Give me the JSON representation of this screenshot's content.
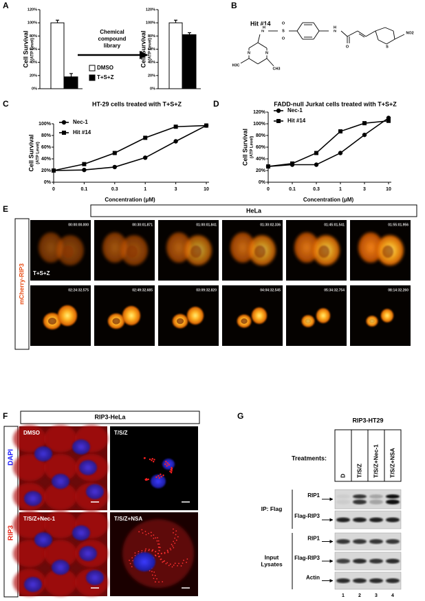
{
  "panels": [
    "A",
    "B",
    "C",
    "D",
    "E",
    "F",
    "G"
  ],
  "chart_data": [
    {
      "type": "bar",
      "ylabel": "Cell Survival",
      "ylabel_sub": "(ATP Level)",
      "ylim": [
        0,
        120
      ],
      "yticks": [
        {
          "value": 0,
          "label": "0%"
        },
        {
          "value": 20,
          "label": "20%"
        },
        {
          "value": 40,
          "label": "40%"
        },
        {
          "value": 60,
          "label": "60%"
        },
        {
          "value": 80,
          "label": "80%"
        },
        {
          "value": 100,
          "label": "100%"
        },
        {
          "value": 120,
          "label": "120%"
        }
      ],
      "series": [
        {
          "name": "DMSO",
          "color": "#ffffff",
          "values": [
            100
          ],
          "errors": [
            4
          ]
        },
        {
          "name": "T+S+Z",
          "color": "#000000",
          "values": [
            18
          ],
          "errors": [
            5
          ]
        }
      ],
      "annotation": [
        "Chemical",
        "compound",
        "library"
      ]
    },
    {
      "type": "bar",
      "ylabel": "Cell Survival",
      "ylabel_sub": "(ATP Level)",
      "ylim": [
        0,
        120
      ],
      "yticks": [
        {
          "value": 0,
          "label": "0%"
        },
        {
          "value": 20,
          "label": "20%"
        },
        {
          "value": 40,
          "label": "40%"
        },
        {
          "value": 60,
          "label": "60%"
        },
        {
          "value": 80,
          "label": "80%"
        },
        {
          "value": 100,
          "label": "100%"
        },
        {
          "value": 120,
          "label": "120%"
        }
      ],
      "series": [
        {
          "color": "#ffffff",
          "values": [
            100
          ],
          "errors": [
            4
          ]
        },
        {
          "color": "#000000",
          "values": [
            82
          ],
          "errors": [
            3
          ]
        }
      ]
    },
    {
      "type": "line",
      "title": "HT-29 cells treated with T+S+Z",
      "ylabel": "Cell Survival",
      "ylabel_sub": "(ATP Level)",
      "xlabel": "Concentration (μM)",
      "categories": [
        "0",
        "0.1",
        "0.3",
        "1",
        "3",
        "10"
      ],
      "ylim": [
        0,
        100
      ],
      "yticks": [
        {
          "value": 0,
          "label": "0%"
        },
        {
          "value": 20,
          "label": "20%"
        },
        {
          "value": 40,
          "label": "40%"
        },
        {
          "value": 60,
          "label": "60%"
        },
        {
          "value": 80,
          "label": "80%"
        },
        {
          "value": 100,
          "label": "100%"
        }
      ],
      "series": [
        {
          "name": "Nec-1",
          "color": "#000000",
          "marker": "circle",
          "values": [
            20,
            21,
            26,
            42,
            70,
            97
          ]
        },
        {
          "name": "Hit #14",
          "color": "#000000",
          "marker": "square",
          "values": [
            20,
            31,
            50,
            76,
            95,
            97
          ]
        }
      ]
    },
    {
      "type": "line",
      "title": "FADD-null Jurkat cells treated with T+S+Z",
      "ylabel": "Cell Survival",
      "ylabel_sub": "(ATP Level)",
      "xlabel": "Concentration (μM)",
      "categories": [
        "0",
        "0.1",
        "0.3",
        "1",
        "3",
        "10"
      ],
      "ylim": [
        0,
        120
      ],
      "yticks": [
        {
          "value": 0,
          "label": "0%"
        },
        {
          "value": 20,
          "label": "20%"
        },
        {
          "value": 40,
          "label": "40%"
        },
        {
          "value": 60,
          "label": "60%"
        },
        {
          "value": 80,
          "label": "80%"
        },
        {
          "value": 100,
          "label": "100%"
        },
        {
          "value": 120,
          "label": "120%"
        }
      ],
      "series": [
        {
          "name": "Nec-1",
          "color": "#000000",
          "marker": "circle",
          "values": [
            27,
            30,
            30,
            50,
            81,
            110
          ]
        },
        {
          "name": "Hit #14",
          "color": "#000000",
          "marker": "square",
          "values": [
            27,
            32,
            50,
            87,
            101,
            105
          ]
        }
      ]
    }
  ],
  "structure": {
    "label": "Hit #14",
    "atoms": [
      "N",
      "H",
      "S",
      "O",
      "O",
      "N",
      "H",
      "O",
      "N",
      "N",
      "H3C",
      "CH3",
      "S",
      "NO2"
    ]
  },
  "panel_e": {
    "header": "HeLa",
    "channel": "mCherry-RIP3",
    "treatment": "T+S+Z",
    "timestamps": [
      [
        "00:00:00.000",
        "00:30:01.871",
        "01:00:01.841",
        "01:30:02.336",
        "01:45:01.541",
        "01:55:01.956"
      ],
      [
        "02:24:32.575",
        "02:49:32.685",
        "03:09:32.820",
        "04:04:32.545",
        "05:34:32.754",
        "08:14:32.260"
      ]
    ]
  },
  "panel_f": {
    "header": "RIP3-HeLa",
    "channels": [
      "DAPI",
      "RIP3"
    ],
    "conditions": [
      "DMSO",
      "T/S/Z",
      "T/S/Z+Nec-1",
      "T/S/Z+NSA"
    ]
  },
  "panel_g": {
    "header": "RIP3-HT29",
    "treatments_label": "Treatments:",
    "lanes": [
      "D",
      "T/S/Z",
      "T/S/Z+Nec-1",
      "T/S/Z+NSA"
    ],
    "groups": [
      {
        "label": [
          "IP: Flag"
        ],
        "bands": [
          "RIP1",
          "Flag-RIP3"
        ]
      },
      {
        "label": [
          "Input",
          "Lysates"
        ],
        "bands": [
          "RIP1",
          "Flag-RIP3",
          "Actin"
        ]
      }
    ],
    "lane_numbers": [
      "1",
      "2",
      "3",
      "4"
    ]
  }
}
